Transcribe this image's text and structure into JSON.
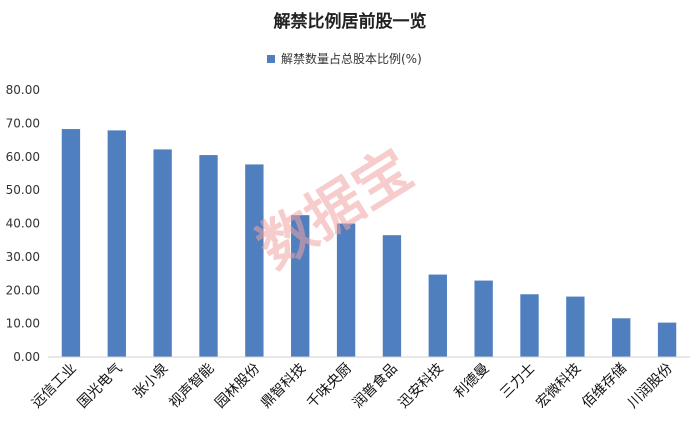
{
  "chart_data": {
    "type": "bar",
    "title": "解禁比例居前股一览",
    "xlabel": "",
    "ylabel": "",
    "categories": [
      "远信工业",
      "国光电气",
      "张小泉",
      "视声智能",
      "园林股份",
      "鼎智科技",
      "千味央厨",
      "润普食品",
      "迅安科技",
      "利德曼",
      "三力士",
      "宏微科技",
      "佰维存储",
      "川润股份"
    ],
    "series": [
      {
        "name": "解禁数量占总股本比例(%)",
        "values": [
          68.3,
          67.9,
          62.2,
          60.5,
          57.7,
          42.5,
          40.0,
          36.5,
          24.7,
          22.9,
          18.8,
          18.1,
          11.6,
          10.3
        ]
      }
    ],
    "ylim": [
      0,
      80
    ],
    "yticks": [
      "0.00",
      "10.00",
      "20.00",
      "30.00",
      "40.00",
      "50.00",
      "60.00",
      "70.00",
      "80.00"
    ],
    "grid": false,
    "legend": "top-center",
    "bar_color": "#4f7fbf"
  },
  "watermark": "数据宝",
  "colors": {
    "watermark": "#f2a3a3"
  }
}
